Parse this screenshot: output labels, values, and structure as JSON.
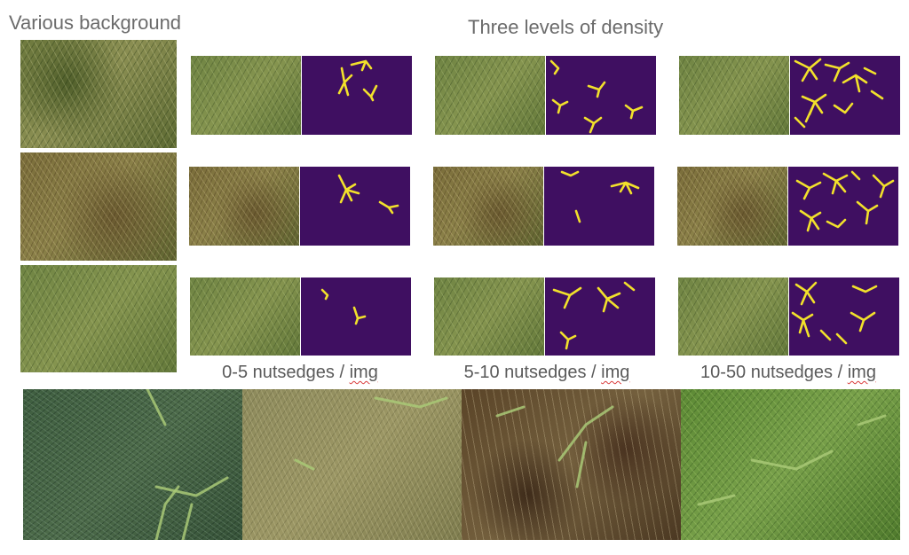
{
  "left_column": {
    "title": "Various background"
  },
  "density": {
    "title": "Three levels of density",
    "levels": [
      {
        "range": "0-5 nutsedges / ",
        "unit": "img"
      },
      {
        "range": "5-10 nutsedges / ",
        "unit": "img"
      },
      {
        "range": "10-50 nutsedges / ",
        "unit": "img"
      }
    ]
  },
  "colors": {
    "mask_background": "#3f0f61",
    "mask_foreground": "#f2e12b",
    "heading_text": "#6b6b6b",
    "spellcheck_underline": "#d93b3b"
  },
  "icons": [
    "grass-photo",
    "segmentation-mask"
  ]
}
